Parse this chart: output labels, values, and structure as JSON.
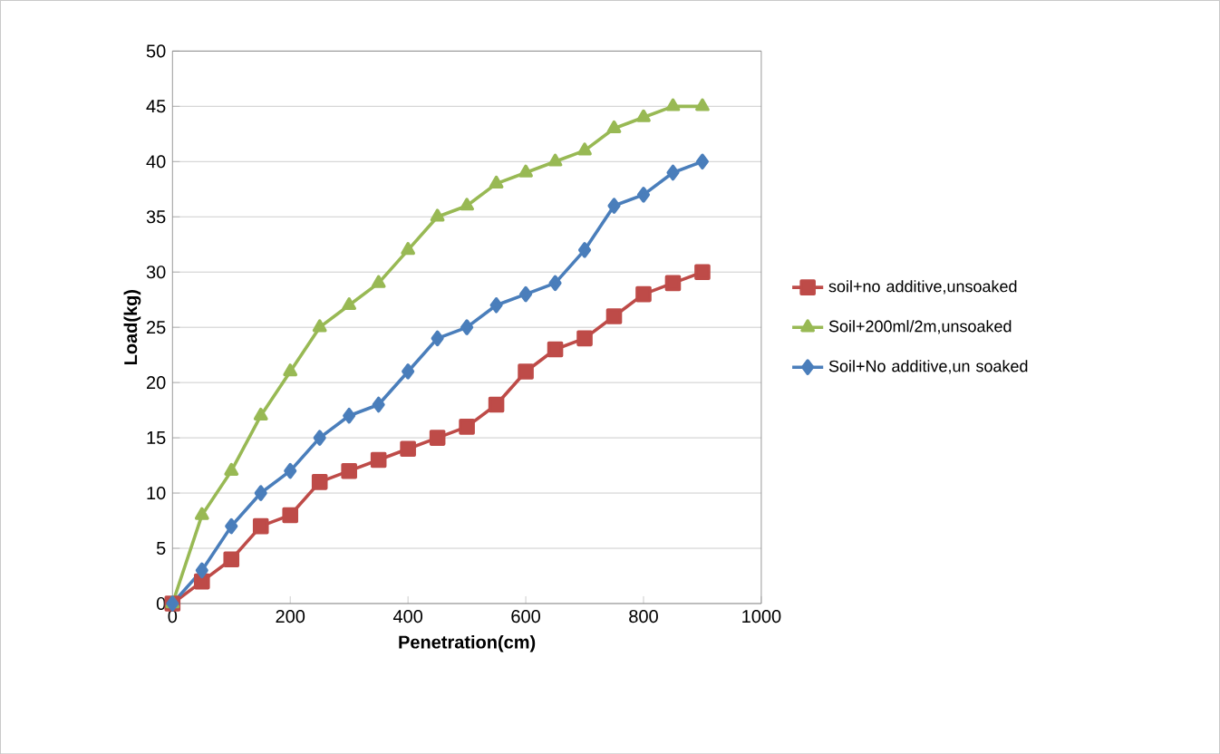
{
  "chart_data": {
    "type": "line",
    "xlabel": "Penetration(cm)",
    "ylabel": "Load(kg)",
    "x": [
      0,
      50,
      100,
      150,
      200,
      250,
      300,
      350,
      400,
      450,
      500,
      550,
      600,
      650,
      700,
      750,
      800,
      850,
      900
    ],
    "series": [
      {
        "name": "soil+no additive,unsoaked",
        "color": "#be4b48",
        "marker": "square",
        "values": [
          0,
          2,
          4,
          7,
          8,
          11,
          12,
          13,
          14,
          15,
          16,
          18,
          21,
          23,
          24,
          26,
          28,
          29,
          30
        ]
      },
      {
        "name": "Soil+200ml/2m,unsoaked",
        "color": "#98b954",
        "marker": "triangle",
        "values": [
          0,
          8,
          12,
          17,
          21,
          25,
          27,
          29,
          32,
          35,
          36,
          38,
          39,
          40,
          41,
          43,
          44,
          45,
          45
        ]
      },
      {
        "name": "Soil+No additive,un soaked",
        "color": "#4a7ebb",
        "marker": "diamond",
        "values": [
          0,
          3,
          7,
          10,
          12,
          15,
          17,
          18,
          21,
          24,
          25,
          27,
          28,
          29,
          32,
          36,
          37,
          39,
          40
        ]
      }
    ],
    "xlim": [
      0,
      1000
    ],
    "xticks": [
      0,
      200,
      400,
      600,
      800,
      1000
    ],
    "ylim": [
      0,
      50
    ],
    "yticks": [
      0,
      5,
      10,
      15,
      20,
      25,
      30,
      35,
      40,
      45,
      50
    ],
    "grid": "y",
    "legend": "right"
  }
}
